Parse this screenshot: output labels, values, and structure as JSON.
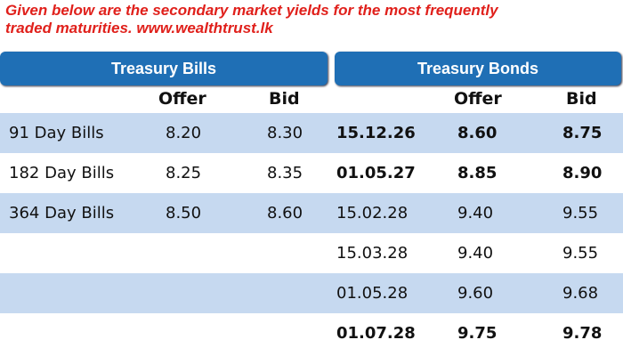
{
  "header": {
    "lines": [
      "Given below are the secondary market yields for the most frequently",
      "traded maturities. www.wealthtrust.lk"
    ]
  },
  "tabs": [
    "Treasury Bills",
    "Treasury Bonds"
  ],
  "columns": {
    "bills": [
      "Offer",
      "Bid"
    ],
    "bonds": [
      "Offer",
      "Bid"
    ]
  },
  "bills": [
    {
      "name": "91 Day Bills",
      "offer": "8.20",
      "bid": "8.30"
    },
    {
      "name": "182 Day Bills",
      "offer": "8.25",
      "bid": "8.35"
    },
    {
      "name": "364 Day Bills",
      "offer": "8.50",
      "bid": "8.60"
    }
  ],
  "bonds": [
    {
      "maturity": "15.12.26",
      "offer": "8.60",
      "bid": "8.75",
      "bold": true
    },
    {
      "maturity": "01.05.27",
      "offer": "8.85",
      "bid": "8.90",
      "bold": true
    },
    {
      "maturity": "15.02.28",
      "offer": "9.40",
      "bid": "9.55",
      "bold": false
    },
    {
      "maturity": "15.03.28",
      "offer": "9.40",
      "bid": "9.55",
      "bold": false
    },
    {
      "maturity": "01.05.28",
      "offer": "9.60",
      "bid": "9.68",
      "bold": false
    },
    {
      "maturity": "01.07.28",
      "offer": "9.75",
      "bid": "9.78",
      "bold": true
    }
  ]
}
